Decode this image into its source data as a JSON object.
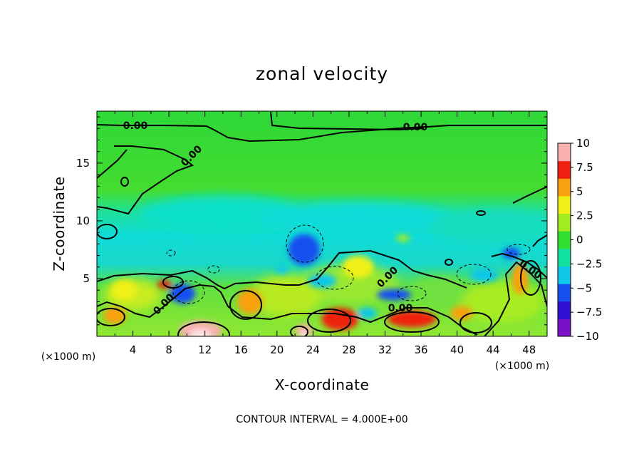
{
  "chart_data": {
    "type": "heatmap",
    "title": "zonal velocity",
    "xlabel": "X-coordinate",
    "ylabel": "Z-coordinate",
    "x_unit_left": "(×1000 m)",
    "x_unit_right": "(×1000 m)",
    "xlim": [
      0,
      50
    ],
    "ylim": [
      0,
      19.5
    ],
    "x_ticks": [
      4,
      8,
      12,
      16,
      20,
      24,
      28,
      32,
      36,
      40,
      44,
      48
    ],
    "x_tick_labels": [
      "4",
      "8",
      "12",
      "16",
      "20",
      "24",
      "28",
      "32",
      "36",
      "40",
      "44",
      "48"
    ],
    "y_ticks": [
      5,
      10,
      15
    ],
    "y_tick_labels": [
      "5",
      "10",
      "15"
    ],
    "colorbar": {
      "range": [
        -10,
        10
      ],
      "ticks": [
        10,
        7.5,
        5,
        2.5,
        0,
        -2.5,
        -5,
        -7.5,
        -10
      ],
      "tick_labels": [
        "10",
        "7.5",
        "5",
        "2.5",
        "0",
        "−2.5",
        "−5",
        "−7.5",
        "−10"
      ],
      "colors": [
        "#7a10c8",
        "#3010d0",
        "#1850f0",
        "#10c8e8",
        "#10e0a0",
        "#30e030",
        "#a0ec20",
        "#f0f018",
        "#f8a010",
        "#ee2010",
        "#f8b0b0"
      ]
    },
    "contour_labels": [
      "0.00",
      "0.00",
      "0.00",
      "0.00",
      "0.00",
      "0.00",
      "0.00"
    ],
    "footnote": "CONTOUR INTERVAL = 4.000E+00",
    "features": [
      {
        "x": 23,
        "z": 7.5,
        "value": -5
      },
      {
        "x": 46,
        "z": 7.2,
        "value": -5
      },
      {
        "x": 9.5,
        "z": 3.7,
        "value": -6
      },
      {
        "x": 11.5,
        "z": 0.5,
        "value": 11
      },
      {
        "x": 23,
        "z": 0.5,
        "value": 10
      },
      {
        "x": 27,
        "z": 1.5,
        "value": 7.5
      },
      {
        "x": 35,
        "z": 1.5,
        "value": 7
      },
      {
        "x": 47,
        "z": 5,
        "value": 6
      },
      {
        "x": 17,
        "z": 3,
        "value": 6
      },
      {
        "x": 3,
        "z": 4,
        "value": 4
      },
      {
        "x": 29,
        "z": 6,
        "value": 3
      }
    ]
  }
}
